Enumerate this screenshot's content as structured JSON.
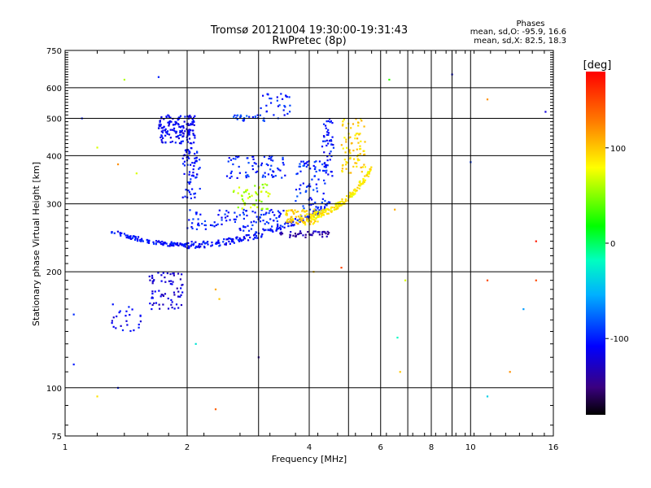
{
  "chart_data": {
    "type": "scatter",
    "title": "Tromsø 20121004 19:30:00-19:31:43",
    "subtitle": "RwPretec (8p)",
    "xlabel": "Frequency [MHz]",
    "ylabel": "Stationary phase Virtual Height [km]",
    "x_scale": "log",
    "y_scale": "log",
    "xlim": [
      1,
      16
    ],
    "ylim": [
      75,
      750
    ],
    "x_ticks": [
      1,
      2,
      4,
      6,
      8,
      10,
      16
    ],
    "y_ticks": [
      75,
      100,
      200,
      300,
      400,
      500,
      600,
      750
    ],
    "grid": true,
    "colorbar": {
      "label": "[deg]",
      "range": [
        -180,
        180
      ],
      "ticks": [
        100,
        0,
        -100
      ]
    },
    "stats": {
      "heading": "Phases",
      "line_o": "mean, sd,O: -95.9, 16.6",
      "line_x": "mean, sd,X:  82.5, 18.3"
    },
    "traces": [
      {
        "x_range": [
          1.3,
          2.0
        ],
        "shape": "cusp",
        "h_min": 235,
        "h_max": 255,
        "phase": -105,
        "n": 110
      },
      {
        "x_range": [
          2.0,
          4.5
        ],
        "shape": "rise",
        "h_start": 235,
        "h_end": 300,
        "phase": -105,
        "n": 170
      },
      {
        "x_range": [
          1.7,
          2.1
        ],
        "shape": "band",
        "h_min": 430,
        "h_max": 510,
        "phase": -110,
        "n": 150
      },
      {
        "x_range": [
          1.95,
          2.15
        ],
        "shape": "band",
        "h_min": 310,
        "h_max": 420,
        "phase": -105,
        "n": 70
      },
      {
        "x_range": [
          1.6,
          1.95
        ],
        "shape": "band",
        "h_min": 160,
        "h_max": 200,
        "phase": -120,
        "n": 70
      },
      {
        "x_range": [
          1.3,
          1.55
        ],
        "shape": "band",
        "h_min": 140,
        "h_max": 165,
        "phase": -110,
        "n": 25
      },
      {
        "x_range": [
          2.0,
          3.6
        ],
        "shape": "band",
        "h_min": 255,
        "h_max": 290,
        "phase": -100,
        "n": 110
      },
      {
        "x_range": [
          2.5,
          3.5
        ],
        "shape": "band",
        "h_min": 350,
        "h_max": 400,
        "phase": -100,
        "n": 70
      },
      {
        "x_range": [
          2.6,
          3.1
        ],
        "shape": "band",
        "h_min": 490,
        "h_max": 510,
        "phase": -90,
        "n": 25
      },
      {
        "x_range": [
          3.0,
          3.6
        ],
        "shape": "band",
        "h_min": 500,
        "h_max": 580,
        "phase": -100,
        "n": 30
      },
      {
        "x_range": [
          3.3,
          4.5
        ],
        "shape": "band",
        "h_min": 245,
        "h_max": 255,
        "phase": -135,
        "n": 45
      },
      {
        "x_range": [
          3.7,
          4.4
        ],
        "shape": "band",
        "h_min": 280,
        "h_max": 390,
        "phase": -95,
        "n": 80
      },
      {
        "x_range": [
          4.3,
          4.6
        ],
        "shape": "band",
        "h_min": 350,
        "h_max": 500,
        "phase": -105,
        "n": 50
      },
      {
        "x_range": [
          3.5,
          4.2
        ],
        "shape": "band",
        "h_min": 265,
        "h_max": 290,
        "phase": 95,
        "n": 80
      },
      {
        "x_range": [
          4.0,
          5.7
        ],
        "shape": "rise",
        "h_start": 280,
        "h_end": 370,
        "phase": 85,
        "n": 150
      },
      {
        "x_range": [
          4.8,
          5.5
        ],
        "shape": "band",
        "h_min": 360,
        "h_max": 500,
        "phase": 95,
        "n": 80
      },
      {
        "x_range": [
          2.6,
          3.2
        ],
        "shape": "band",
        "h_min": 290,
        "h_max": 340,
        "phase": 60,
        "n": 50
      }
    ],
    "scattered_points": [
      {
        "x": 1.05,
        "y": 155,
        "phase": -95
      },
      {
        "x": 1.05,
        "y": 115,
        "phase": -100
      },
      {
        "x": 1.1,
        "y": 500,
        "phase": -100
      },
      {
        "x": 1.2,
        "y": 420,
        "phase": 70
      },
      {
        "x": 1.2,
        "y": 95,
        "phase": 90
      },
      {
        "x": 1.35,
        "y": 380,
        "phase": 120
      },
      {
        "x": 1.35,
        "y": 100,
        "phase": -100
      },
      {
        "x": 1.4,
        "y": 630,
        "phase": 60
      },
      {
        "x": 1.5,
        "y": 360,
        "phase": 70
      },
      {
        "x": 1.7,
        "y": 640,
        "phase": -100
      },
      {
        "x": 2.1,
        "y": 130,
        "phase": -30
      },
      {
        "x": 2.35,
        "y": 180,
        "phase": 110
      },
      {
        "x": 2.35,
        "y": 88,
        "phase": 140
      },
      {
        "x": 2.4,
        "y": 170,
        "phase": 100
      },
      {
        "x": 3.0,
        "y": 120,
        "phase": -140
      },
      {
        "x": 4.1,
        "y": 200,
        "phase": 100
      },
      {
        "x": 4.8,
        "y": 205,
        "phase": 150
      },
      {
        "x": 6.3,
        "y": 630,
        "phase": 30
      },
      {
        "x": 6.5,
        "y": 290,
        "phase": 110
      },
      {
        "x": 6.6,
        "y": 135,
        "phase": -20
      },
      {
        "x": 6.7,
        "y": 110,
        "phase": 100
      },
      {
        "x": 6.9,
        "y": 190,
        "phase": 70
      },
      {
        "x": 9.0,
        "y": 650,
        "phase": -110
      },
      {
        "x": 10.0,
        "y": 385,
        "phase": -90
      },
      {
        "x": 11.0,
        "y": 560,
        "phase": 120
      },
      {
        "x": 11.0,
        "y": 95,
        "phase": -40
      },
      {
        "x": 11.0,
        "y": 190,
        "phase": 150
      },
      {
        "x": 12.5,
        "y": 110,
        "phase": 120
      },
      {
        "x": 13.5,
        "y": 160,
        "phase": -60
      },
      {
        "x": 14.5,
        "y": 190,
        "phase": 150
      },
      {
        "x": 14.5,
        "y": 240,
        "phase": 170
      },
      {
        "x": 15.3,
        "y": 520,
        "phase": -120
      }
    ]
  }
}
